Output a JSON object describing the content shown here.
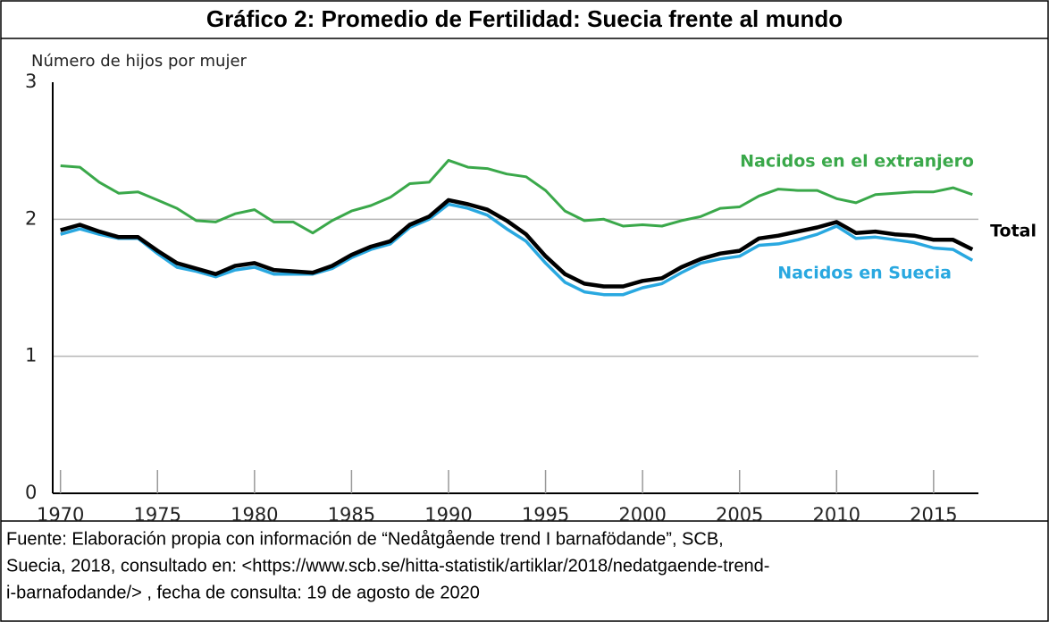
{
  "chart_data": {
    "type": "line",
    "title": "Gráfico 2: Promedio de Fertilidad: Suecia frente al mundo",
    "ylabel": "Número de hijos por mujer",
    "x": [
      1970,
      1971,
      1972,
      1973,
      1974,
      1975,
      1976,
      1977,
      1978,
      1979,
      1980,
      1981,
      1982,
      1983,
      1984,
      1985,
      1986,
      1987,
      1988,
      1989,
      1990,
      1991,
      1992,
      1993,
      1994,
      1995,
      1996,
      1997,
      1998,
      1999,
      2000,
      2001,
      2002,
      2003,
      2004,
      2005,
      2006,
      2007,
      2008,
      2009,
      2010,
      2011,
      2012,
      2013,
      2014,
      2015,
      2016,
      2017
    ],
    "series": [
      {
        "name": "Nacidos en el extranjero",
        "color": "#3aa84a",
        "width": 3,
        "values": [
          2.39,
          2.38,
          2.27,
          2.19,
          2.2,
          2.14,
          2.08,
          1.99,
          1.98,
          2.04,
          2.07,
          1.98,
          1.98,
          1.9,
          1.99,
          2.06,
          2.1,
          2.16,
          2.26,
          2.27,
          2.43,
          2.38,
          2.37,
          2.33,
          2.31,
          2.21,
          2.06,
          1.99,
          2.0,
          1.95,
          1.96,
          1.95,
          1.99,
          2.02,
          2.08,
          2.09,
          2.17,
          2.22,
          2.21,
          2.21,
          2.15,
          2.12,
          2.18,
          2.19,
          2.2,
          2.2,
          2.23,
          2.18
        ]
      },
      {
        "name": "Nacidos en Suecia",
        "color": "#29a8e0",
        "width": 3.5,
        "values": [
          1.89,
          1.93,
          1.89,
          1.86,
          1.86,
          1.75,
          1.65,
          1.62,
          1.58,
          1.63,
          1.65,
          1.6,
          1.6,
          1.6,
          1.64,
          1.72,
          1.78,
          1.82,
          1.94,
          2.0,
          2.11,
          2.08,
          2.03,
          1.93,
          1.84,
          1.68,
          1.54,
          1.47,
          1.45,
          1.45,
          1.5,
          1.53,
          1.61,
          1.68,
          1.71,
          1.73,
          1.81,
          1.82,
          1.85,
          1.89,
          1.95,
          1.86,
          1.87,
          1.85,
          1.83,
          1.79,
          1.78,
          1.7
        ]
      },
      {
        "name": "Total",
        "color": "#000000",
        "width": 4.5,
        "values": [
          1.92,
          1.96,
          1.91,
          1.87,
          1.87,
          1.77,
          1.68,
          1.64,
          1.6,
          1.66,
          1.68,
          1.63,
          1.62,
          1.61,
          1.66,
          1.74,
          1.8,
          1.84,
          1.96,
          2.02,
          2.14,
          2.11,
          2.07,
          1.99,
          1.89,
          1.73,
          1.6,
          1.53,
          1.51,
          1.51,
          1.55,
          1.57,
          1.65,
          1.71,
          1.75,
          1.77,
          1.86,
          1.88,
          1.91,
          1.94,
          1.98,
          1.9,
          1.91,
          1.89,
          1.88,
          1.85,
          1.85,
          1.78
        ]
      }
    ],
    "xlim": [
      1969.6,
      2018
    ],
    "xticks": [
      1970,
      1975,
      1980,
      1985,
      1990,
      1995,
      2000,
      2005,
      2010,
      2015
    ],
    "ylim": [
      0,
      3
    ],
    "yticks": [
      0,
      1,
      2,
      3
    ],
    "grid": true,
    "source": [
      "Fuente: Elaboración propia con información de “Nedåtgående trend I barnafödande”, SCB,",
      "Suecia, 2018, consultado en: <https://www.scb.se/hitta-statistik/artiklar/2018/nedatgaende-trend-",
      "i-barnafodande/> , fecha de consulta: 19 de agosto de 2020"
    ]
  }
}
